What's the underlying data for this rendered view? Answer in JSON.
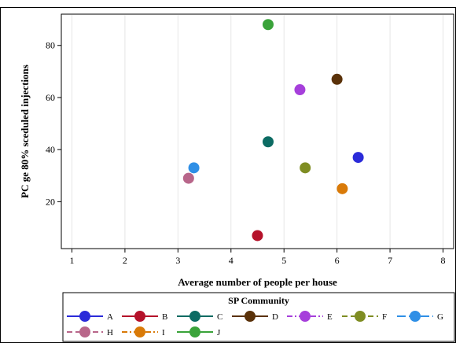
{
  "chart_data": {
    "type": "scatter",
    "xlabel": "Average number of people per house",
    "ylabel": "PC ge 80% sceduled injections",
    "xlim": [
      0.8,
      8.2
    ],
    "ylim": [
      2,
      92
    ],
    "xticks": [
      1,
      2,
      3,
      4,
      5,
      6,
      7,
      8
    ],
    "yticks": [
      20,
      40,
      60,
      80
    ],
    "grid": "vertical",
    "legend": {
      "title": "SP Community",
      "placement": "bottom"
    },
    "series": [
      {
        "name": "A",
        "color": "#2b2bd9",
        "line": "solid",
        "points": [
          {
            "x": 6.4,
            "y": 37
          }
        ]
      },
      {
        "name": "B",
        "color": "#b5122a",
        "line": "solid",
        "points": [
          {
            "x": 4.5,
            "y": 7
          }
        ]
      },
      {
        "name": "C",
        "color": "#0c6b63",
        "line": "solid",
        "points": [
          {
            "x": 4.7,
            "y": 43
          }
        ]
      },
      {
        "name": "D",
        "color": "#5a3109",
        "line": "solid",
        "points": [
          {
            "x": 6.0,
            "y": 67
          }
        ]
      },
      {
        "name": "E",
        "color": "#a63fdb",
        "line": "dashdot",
        "points": [
          {
            "x": 5.3,
            "y": 63
          }
        ]
      },
      {
        "name": "F",
        "color": "#7f8d23",
        "line": "dashed",
        "points": [
          {
            "x": 5.4,
            "y": 33
          }
        ]
      },
      {
        "name": "G",
        "color": "#2f8fe6",
        "line": "longdash",
        "points": [
          {
            "x": 3.3,
            "y": 33
          }
        ]
      },
      {
        "name": "H",
        "color": "#b8668a",
        "line": "dashed",
        "points": [
          {
            "x": 3.2,
            "y": 29
          }
        ]
      },
      {
        "name": "I",
        "color": "#d97a08",
        "line": "dashdot",
        "points": [
          {
            "x": 6.1,
            "y": 25
          }
        ]
      },
      {
        "name": "J",
        "color": "#3aa33a",
        "line": "solid",
        "points": [
          {
            "x": 4.7,
            "y": 88
          }
        ]
      }
    ]
  }
}
